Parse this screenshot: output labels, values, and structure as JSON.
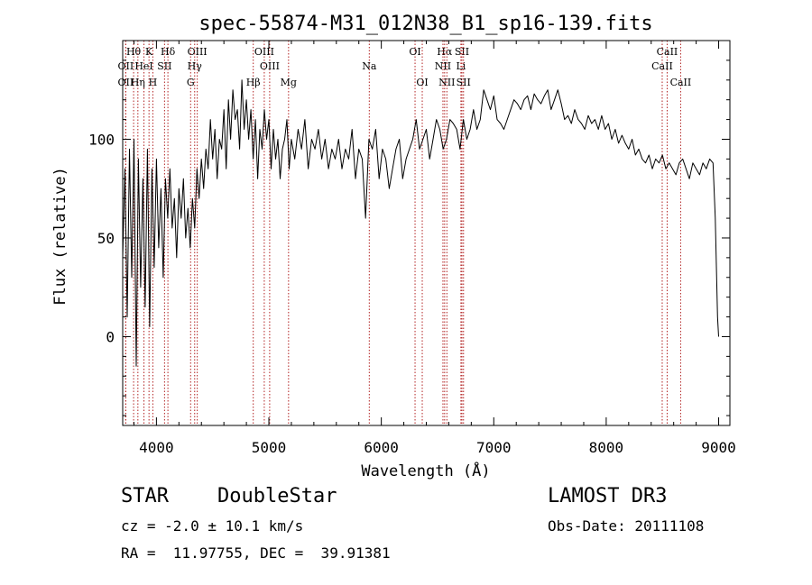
{
  "chart_data": {
    "type": "line",
    "title": "spec-55874-M31_012N38_B1_sp16-139.fits",
    "xlabel": "Wavelength (Å)",
    "ylabel": "Flux (relative)",
    "xlim": [
      3700,
      9100
    ],
    "ylim": [
      -45,
      150
    ],
    "x_ticks": [
      4000,
      5000,
      6000,
      7000,
      8000,
      9000
    ],
    "y_ticks": [
      0,
      50,
      100
    ],
    "series": [
      {
        "name": "spectrum",
        "x": [
          3700,
          3720,
          3740,
          3760,
          3780,
          3800,
          3820,
          3840,
          3860,
          3880,
          3900,
          3920,
          3940,
          3960,
          3980,
          4000,
          4020,
          4040,
          4060,
          4080,
          4100,
          4120,
          4140,
          4160,
          4180,
          4200,
          4220,
          4240,
          4260,
          4280,
          4300,
          4320,
          4340,
          4360,
          4380,
          4400,
          4420,
          4440,
          4460,
          4480,
          4500,
          4520,
          4540,
          4560,
          4580,
          4600,
          4620,
          4640,
          4660,
          4680,
          4700,
          4720,
          4740,
          4760,
          4780,
          4800,
          4820,
          4840,
          4860,
          4880,
          4900,
          4920,
          4940,
          4960,
          4980,
          5000,
          5020,
          5040,
          5060,
          5080,
          5100,
          5120,
          5140,
          5160,
          5180,
          5200,
          5230,
          5260,
          5290,
          5320,
          5350,
          5380,
          5410,
          5440,
          5470,
          5500,
          5530,
          5560,
          5590,
          5620,
          5650,
          5680,
          5710,
          5740,
          5770,
          5800,
          5830,
          5860,
          5890,
          5920,
          5950,
          5980,
          6010,
          6040,
          6070,
          6100,
          6130,
          6160,
          6190,
          6220,
          6250,
          6280,
          6310,
          6340,
          6370,
          6400,
          6430,
          6460,
          6490,
          6520,
          6550,
          6580,
          6610,
          6640,
          6670,
          6700,
          6730,
          6760,
          6790,
          6820,
          6850,
          6880,
          6910,
          6940,
          6970,
          7000,
          7030,
          7060,
          7090,
          7120,
          7150,
          7180,
          7210,
          7240,
          7270,
          7300,
          7330,
          7360,
          7390,
          7420,
          7450,
          7480,
          7510,
          7540,
          7570,
          7600,
          7630,
          7660,
          7690,
          7720,
          7750,
          7780,
          7810,
          7840,
          7870,
          7900,
          7930,
          7960,
          7990,
          8020,
          8050,
          8080,
          8110,
          8140,
          8170,
          8200,
          8230,
          8260,
          8290,
          8320,
          8350,
          8380,
          8410,
          8440,
          8470,
          8500,
          8530,
          8560,
          8590,
          8620,
          8650,
          8680,
          8710,
          8740,
          8770,
          8800,
          8830,
          8860,
          8890,
          8920,
          8950,
          8970,
          8990,
          9000
        ],
        "values": [
          40,
          85,
          10,
          95,
          30,
          100,
          -15,
          90,
          25,
          80,
          15,
          95,
          5,
          85,
          35,
          90,
          45,
          75,
          30,
          80,
          60,
          85,
          55,
          70,
          40,
          75,
          60,
          80,
          50,
          65,
          45,
          70,
          55,
          85,
          70,
          90,
          75,
          95,
          85,
          110,
          90,
          105,
          80,
          100,
          95,
          115,
          85,
          120,
          100,
          125,
          110,
          115,
          95,
          130,
          105,
          120,
          100,
          115,
          90,
          110,
          80,
          105,
          95,
          115,
          100,
          110,
          85,
          105,
          90,
          100,
          80,
          95,
          100,
          110,
          85,
          100,
          90,
          105,
          95,
          110,
          85,
          100,
          95,
          105,
          90,
          100,
          85,
          95,
          90,
          100,
          85,
          95,
          90,
          105,
          80,
          95,
          90,
          60,
          100,
          95,
          105,
          80,
          95,
          90,
          75,
          85,
          95,
          100,
          80,
          90,
          95,
          100,
          110,
          95,
          100,
          105,
          90,
          100,
          110,
          105,
          95,
          100,
          110,
          108,
          105,
          95,
          110,
          100,
          105,
          115,
          105,
          110,
          125,
          120,
          115,
          122,
          110,
          108,
          105,
          110,
          115,
          120,
          118,
          115,
          120,
          122,
          115,
          123,
          120,
          118,
          122,
          125,
          115,
          120,
          125,
          118,
          110,
          112,
          108,
          115,
          110,
          108,
          105,
          112,
          108,
          110,
          105,
          112,
          105,
          108,
          100,
          105,
          98,
          102,
          98,
          95,
          100,
          92,
          95,
          90,
          88,
          92,
          85,
          90,
          88,
          92,
          85,
          88,
          85,
          82,
          88,
          90,
          85,
          80,
          88,
          85,
          82,
          88,
          85,
          90,
          88,
          60,
          10,
          0
        ]
      }
    ],
    "spectral_lines": [
      {
        "name": "Hθ",
        "x": 3797,
        "row": 0
      },
      {
        "name": "OII",
        "x": 3727,
        "row": 1
      },
      {
        "name": "OII",
        "x": 3727,
        "row": 2
      },
      {
        "name": "HeI",
        "x": 3889,
        "row": 1
      },
      {
        "name": "Hη",
        "x": 3835,
        "row": 2
      },
      {
        "name": "K",
        "x": 3934,
        "row": 0
      },
      {
        "name": "H",
        "x": 3968,
        "row": 2
      },
      {
        "name": "SII",
        "x": 4072,
        "row": 1
      },
      {
        "name": "Hδ",
        "x": 4102,
        "row": 0
      },
      {
        "name": "OIII",
        "x": 4363,
        "row": 0
      },
      {
        "name": "Hγ",
        "x": 4340,
        "row": 1
      },
      {
        "name": "G",
        "x": 4304,
        "row": 2
      },
      {
        "name": "Hβ",
        "x": 4861,
        "row": 2
      },
      {
        "name": "OIII",
        "x": 4959,
        "row": 0
      },
      {
        "name": "OIII",
        "x": 5007,
        "row": 1
      },
      {
        "name": "Mg",
        "x": 5175,
        "row": 2
      },
      {
        "name": "Na",
        "x": 5893,
        "row": 1
      },
      {
        "name": "OI",
        "x": 6300,
        "row": 0
      },
      {
        "name": "OI",
        "x": 6364,
        "row": 2
      },
      {
        "name": "Hα",
        "x": 6563,
        "row": 0
      },
      {
        "name": "NII",
        "x": 6548,
        "row": 1
      },
      {
        "name": "NII",
        "x": 6583,
        "row": 2
      },
      {
        "name": "SII",
        "x": 6717,
        "row": 0
      },
      {
        "name": "Li",
        "x": 6708,
        "row": 1
      },
      {
        "name": "SII",
        "x": 6731,
        "row": 2
      },
      {
        "name": "CaII",
        "x": 8542,
        "row": 0
      },
      {
        "name": "CaII",
        "x": 8498,
        "row": 1
      },
      {
        "name": "CaII",
        "x": 8662,
        "row": 2
      }
    ]
  },
  "info": {
    "object_class": "STAR",
    "subclass": "DoubleStar",
    "survey": "LAMOST DR3",
    "redshift": "cz = -2.0 ± 10.1 km/s",
    "obs_date": "Obs-Date: 20111108",
    "coords": "RA =  11.97755, DEC =  39.91381"
  },
  "colors": {
    "line_marker": "#b22222",
    "spectrum": "#000000"
  }
}
